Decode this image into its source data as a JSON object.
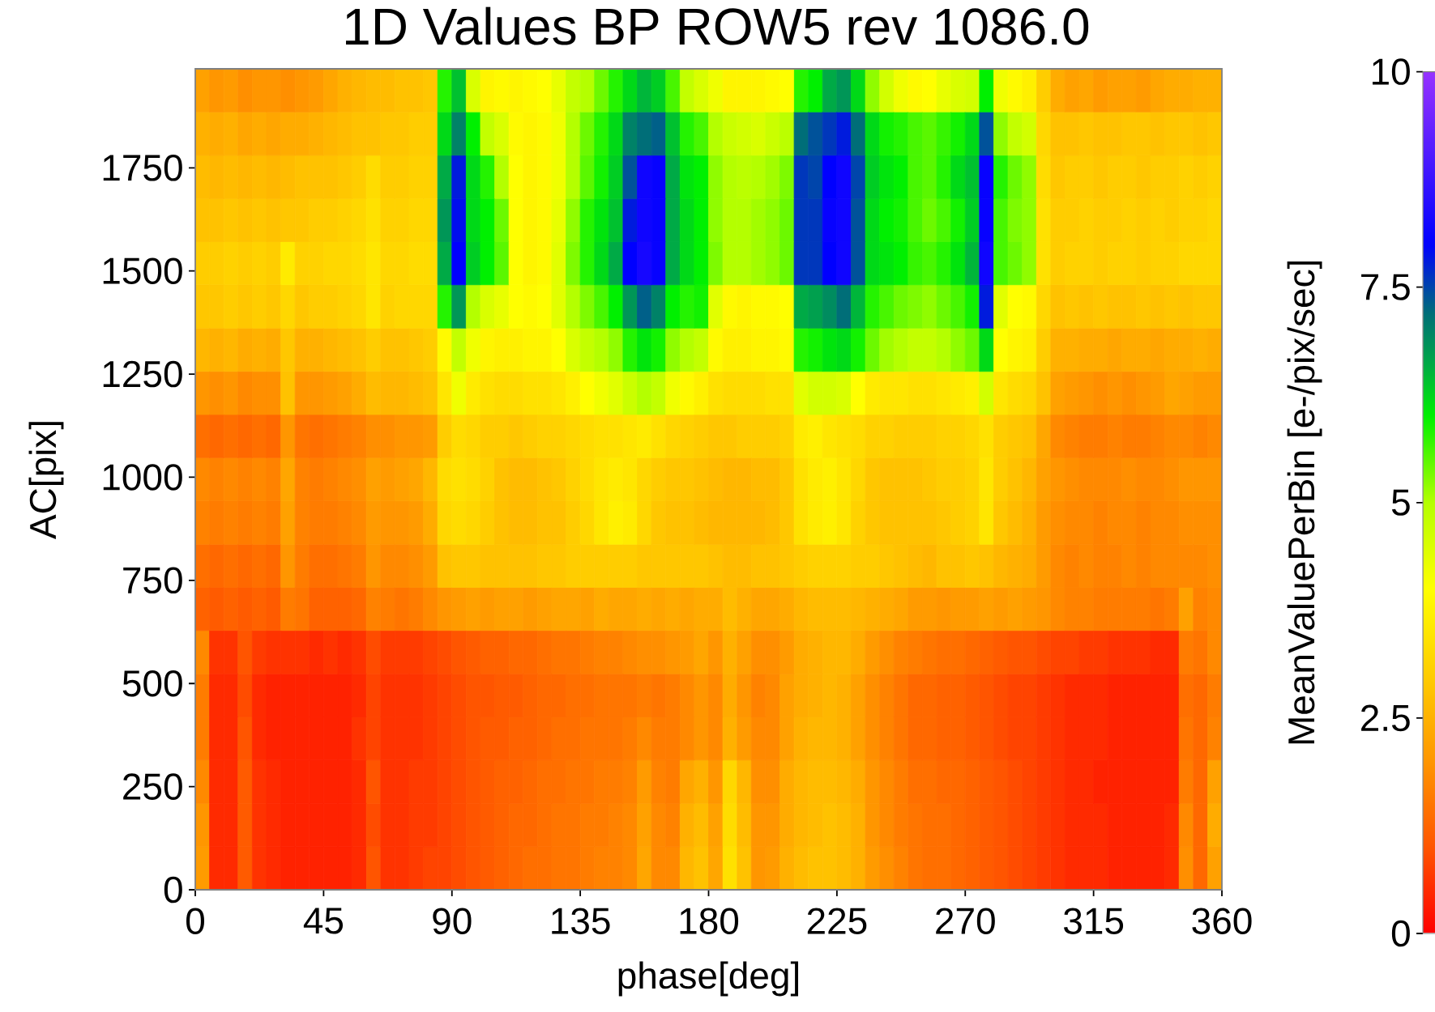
{
  "chart_data": {
    "type": "heatmap",
    "title": "1D Values BP ROW5 rev 1086.0",
    "xlabel": "phase[deg]",
    "ylabel": "AC[pix]",
    "clabel": "MeanValuePerBin [e-/pix/sec]",
    "xlim": [
      0,
      360
    ],
    "xticks": [
      0,
      45,
      90,
      135,
      180,
      225,
      270,
      315,
      360
    ],
    "ylim": [
      0,
      1990
    ],
    "yticks": [
      0,
      250,
      500,
      750,
      1000,
      1250,
      1500,
      1750
    ],
    "clim": [
      0,
      10
    ],
    "cticks": [
      0,
      2.5,
      5,
      7.5,
      10
    ],
    "x": [
      2.5,
      7.5,
      12.5,
      17.5,
      22.5,
      27.5,
      32.5,
      37.5,
      42.5,
      47.5,
      52.5,
      57.5,
      62.5,
      67.5,
      72.5,
      77.5,
      82.5,
      87.5,
      92.5,
      97.5,
      102.5,
      107.5,
      112.5,
      117.5,
      122.5,
      127.5,
      132.5,
      137.5,
      142.5,
      147.5,
      152.5,
      157.5,
      162.5,
      167.5,
      172.5,
      177.5,
      182.5,
      187.5,
      192.5,
      197.5,
      202.5,
      207.5,
      212.5,
      217.5,
      222.5,
      227.5,
      232.5,
      237.5,
      242.5,
      247.5,
      252.5,
      257.5,
      262.5,
      267.5,
      272.5,
      277.5,
      282.5,
      287.5,
      292.5,
      297.5,
      302.5,
      307.5,
      312.5,
      317.5,
      322.5,
      327.5,
      332.5,
      337.5,
      342.5,
      347.5,
      352.5,
      357.5
    ],
    "y": [
      1938,
      1833,
      1728,
      1623,
      1519,
      1414,
      1309,
      1204,
      1100,
      995,
      890,
      785,
      681,
      576,
      471,
      367,
      262,
      157,
      52
    ],
    "cells": [
      [
        2.2,
        2.0,
        2.1,
        1.9,
        2.0,
        2.0,
        1.9,
        2.0,
        2.1,
        2.3,
        2.5,
        2.6,
        2.7,
        2.7,
        2.8,
        2.8,
        2.9,
        5.8,
        6.4,
        4.5,
        3.8,
        3.9,
        3.8,
        3.9,
        4.0,
        4.3,
        4.8,
        5.0,
        5.4,
        5.8,
        6.2,
        6.5,
        6.3,
        5.6,
        4.8,
        4.5,
        4.2,
        3.8,
        3.8,
        3.8,
        3.9,
        4.0,
        5.8,
        6.0,
        6.6,
        6.8,
        6.2,
        5.2,
        4.6,
        4.2,
        3.9,
        4.0,
        4.3,
        4.5,
        4.6,
        6.0,
        4.2,
        3.9,
        3.7,
        3.0,
        2.4,
        2.2,
        2.3,
        2.1,
        2.2,
        2.2,
        2.1,
        2.3,
        2.4,
        2.4,
        2.5,
        2.5
      ],
      [
        2.5,
        2.4,
        2.5,
        2.3,
        2.4,
        2.3,
        2.4,
        2.4,
        2.5,
        2.6,
        2.7,
        2.8,
        2.8,
        2.9,
        2.9,
        3.0,
        3.0,
        6.2,
        7.0,
        6.0,
        4.8,
        4.5,
        3.9,
        3.8,
        3.9,
        4.2,
        5.0,
        5.4,
        5.8,
        6.2,
        7.0,
        7.2,
        7.3,
        6.4,
        5.8,
        5.6,
        5.0,
        4.7,
        4.6,
        4.5,
        4.7,
        4.9,
        7.2,
        7.4,
        7.6,
        7.8,
        7.2,
        6.2,
        5.9,
        5.8,
        5.6,
        5.5,
        5.7,
        5.9,
        6.2,
        7.4,
        5.2,
        4.8,
        4.6,
        3.2,
        2.8,
        2.8,
        2.9,
        2.8,
        2.8,
        2.9,
        2.9,
        2.8,
        2.9,
        2.9,
        2.8,
        2.9
      ],
      [
        2.7,
        2.6,
        2.7,
        2.6,
        2.7,
        2.6,
        2.7,
        2.8,
        2.8,
        2.8,
        2.9,
        3.0,
        3.3,
        3.0,
        3.0,
        3.1,
        3.1,
        6.6,
        7.8,
        6.2,
        5.8,
        5.0,
        4.0,
        3.8,
        3.9,
        4.2,
        5.0,
        5.5,
        5.9,
        6.3,
        7.4,
        8.2,
        8.1,
        6.6,
        6.1,
        6.0,
        5.2,
        5.0,
        4.9,
        5.0,
        5.1,
        5.3,
        7.6,
        7.5,
        8.0,
        8.2,
        7.5,
        6.3,
        6.1,
        6.0,
        5.6,
        5.5,
        5.8,
        6.2,
        6.4,
        8.1,
        5.8,
        5.4,
        5.2,
        3.3,
        2.9,
        3.0,
        3.0,
        2.9,
        3.0,
        3.0,
        2.9,
        3.0,
        3.0,
        3.1,
        3.0,
        3.1
      ],
      [
        2.8,
        2.8,
        2.9,
        2.8,
        2.9,
        2.8,
        2.9,
        2.9,
        3.0,
        3.0,
        3.1,
        3.2,
        3.4,
        3.1,
        3.1,
        3.2,
        3.2,
        6.8,
        7.9,
        6.2,
        6.0,
        5.4,
        4.0,
        3.8,
        3.9,
        4.3,
        5.2,
        5.8,
        6.1,
        6.4,
        7.8,
        8.2,
        8.1,
        6.6,
        6.2,
        6.0,
        5.2,
        5.0,
        5.0,
        5.1,
        5.2,
        5.4,
        7.6,
        7.6,
        8.1,
        8.2,
        7.4,
        6.2,
        6.0,
        5.9,
        5.6,
        5.4,
        5.6,
        5.9,
        6.3,
        8.1,
        5.6,
        5.3,
        5.2,
        3.4,
        3.0,
        3.0,
        3.1,
        3.0,
        3.0,
        3.1,
        3.0,
        3.1,
        3.0,
        3.1,
        3.1,
        3.2
      ],
      [
        3.0,
        3.0,
        3.1,
        3.0,
        3.1,
        3.0,
        3.6,
        3.1,
        3.1,
        3.2,
        3.2,
        3.3,
        3.5,
        3.2,
        3.2,
        3.3,
        3.3,
        6.6,
        8.0,
        6.3,
        6.0,
        5.5,
        4.0,
        3.8,
        3.9,
        4.4,
        5.3,
        5.8,
        6.2,
        6.6,
        8.0,
        8.3,
        8.1,
        6.6,
        6.2,
        6.0,
        5.3,
        5.0,
        5.0,
        5.1,
        5.2,
        5.4,
        7.6,
        7.6,
        8.0,
        8.2,
        7.4,
        6.2,
        6.1,
        6.0,
        5.7,
        5.6,
        5.8,
        6.1,
        6.5,
        8.2,
        5.6,
        5.4,
        5.2,
        3.4,
        3.0,
        3.1,
        3.1,
        3.0,
        3.1,
        3.1,
        3.0,
        3.1,
        3.1,
        3.2,
        3.2,
        3.2
      ],
      [
        2.9,
        2.9,
        3.0,
        2.9,
        3.0,
        2.9,
        3.2,
        2.9,
        3.0,
        3.0,
        3.1,
        3.2,
        3.5,
        3.1,
        3.2,
        3.2,
        3.2,
        5.8,
        6.8,
        5.0,
        4.5,
        4.3,
        4.0,
        3.9,
        4.0,
        4.4,
        5.0,
        5.3,
        5.6,
        6.0,
        6.8,
        7.3,
        7.0,
        6.0,
        5.8,
        5.9,
        4.4,
        3.9,
        3.8,
        3.9,
        3.9,
        4.0,
        6.6,
        6.7,
        6.9,
        7.2,
        6.5,
        5.8,
        5.6,
        5.4,
        5.3,
        5.2,
        5.4,
        5.6,
        5.9,
        7.8,
        4.4,
        4.0,
        3.9,
        3.2,
        2.8,
        2.9,
        2.8,
        2.9,
        2.8,
        2.8,
        2.9,
        2.8,
        2.9,
        2.8,
        2.9,
        2.9
      ],
      [
        2.6,
        2.5,
        2.6,
        2.4,
        2.5,
        2.4,
        2.9,
        2.5,
        2.5,
        2.6,
        2.7,
        2.8,
        3.0,
        2.8,
        2.8,
        2.9,
        3.0,
        3.9,
        4.8,
        4.2,
        3.8,
        3.7,
        3.7,
        3.8,
        3.8,
        4.0,
        4.5,
        4.8,
        5.0,
        5.2,
        5.8,
        6.1,
        5.9,
        5.2,
        5.0,
        4.8,
        3.9,
        3.7,
        3.7,
        3.8,
        3.8,
        3.9,
        5.8,
        5.9,
        6.1,
        6.2,
        5.9,
        5.4,
        5.1,
        5.0,
        4.8,
        4.8,
        5.0,
        5.2,
        5.4,
        6.2,
        4.0,
        3.8,
        3.7,
        3.0,
        2.5,
        2.5,
        2.4,
        2.4,
        2.3,
        2.4,
        2.4,
        2.3,
        2.4,
        2.4,
        2.5,
        2.4
      ],
      [
        2.0,
        1.9,
        2.0,
        1.8,
        1.9,
        1.9,
        2.8,
        2.0,
        2.0,
        2.1,
        2.2,
        2.4,
        2.7,
        2.6,
        2.6,
        2.7,
        2.8,
        3.5,
        4.2,
        3.6,
        3.4,
        3.3,
        3.3,
        3.4,
        3.4,
        3.5,
        3.7,
        4.0,
        4.2,
        4.4,
        4.7,
        5.0,
        4.8,
        4.2,
        3.9,
        3.7,
        3.4,
        3.3,
        3.3,
        3.3,
        3.4,
        3.4,
        4.4,
        4.6,
        4.6,
        4.5,
        4.0,
        3.6,
        3.5,
        3.5,
        3.4,
        3.4,
        3.5,
        3.6,
        3.7,
        4.6,
        3.5,
        3.3,
        3.2,
        2.8,
        2.2,
        2.1,
        2.0,
        1.9,
        2.0,
        1.9,
        2.0,
        2.1,
        2.3,
        2.2,
        2.1,
        2.1
      ],
      [
        1.4,
        1.3,
        1.4,
        1.3,
        1.4,
        1.3,
        2.0,
        1.5,
        1.4,
        1.5,
        1.6,
        1.7,
        1.9,
        1.9,
        2.0,
        2.0,
        2.1,
        3.0,
        3.3,
        3.2,
        3.0,
        3.0,
        2.9,
        3.0,
        3.1,
        3.1,
        3.2,
        3.3,
        3.4,
        3.4,
        3.5,
        3.6,
        3.4,
        3.2,
        3.1,
        3.0,
        2.9,
        2.9,
        3.0,
        3.0,
        3.0,
        3.1,
        3.6,
        3.7,
        3.5,
        3.4,
        3.3,
        3.1,
        3.1,
        3.0,
        3.0,
        3.0,
        3.1,
        3.1,
        3.2,
        3.4,
        3.0,
        2.9,
        2.8,
        2.3,
        1.8,
        1.7,
        1.6,
        1.6,
        1.7,
        1.6,
        1.6,
        1.7,
        1.8,
        1.8,
        1.7,
        1.8
      ],
      [
        1.8,
        1.7,
        1.8,
        1.7,
        1.8,
        1.7,
        2.3,
        1.7,
        1.6,
        1.7,
        1.8,
        1.9,
        2.2,
        2.1,
        2.2,
        2.3,
        2.6,
        3.3,
        3.4,
        3.3,
        3.1,
        2.8,
        2.7,
        2.7,
        2.8,
        2.9,
        3.1,
        3.3,
        3.5,
        3.6,
        3.5,
        3.2,
        3.0,
        2.9,
        2.9,
        2.8,
        2.7,
        2.6,
        2.6,
        2.7,
        2.7,
        2.9,
        3.4,
        3.6,
        3.7,
        3.5,
        3.2,
        2.9,
        2.8,
        2.8,
        2.8,
        2.9,
        3.0,
        3.0,
        3.1,
        3.5,
        3.0,
        2.8,
        2.6,
        2.2,
        2.0,
        1.9,
        1.8,
        1.8,
        1.8,
        1.9,
        1.8,
        1.8,
        1.9,
        2.0,
        2.0,
        2.0
      ],
      [
        1.7,
        1.6,
        1.7,
        1.6,
        1.7,
        1.6,
        2.2,
        1.7,
        1.6,
        1.6,
        1.7,
        1.8,
        2.1,
        2.0,
        2.0,
        2.1,
        2.4,
        3.2,
        3.3,
        3.2,
        3.0,
        2.8,
        2.7,
        2.7,
        2.8,
        2.8,
        3.0,
        3.2,
        3.5,
        3.7,
        3.6,
        3.2,
        2.9,
        2.8,
        2.8,
        2.7,
        2.6,
        2.6,
        2.6,
        2.6,
        2.7,
        2.9,
        3.4,
        3.6,
        3.7,
        3.5,
        3.1,
        2.9,
        2.8,
        2.8,
        2.8,
        2.8,
        2.9,
        3.0,
        3.1,
        3.5,
        2.9,
        2.7,
        2.5,
        2.1,
        1.9,
        1.8,
        1.8,
        1.7,
        1.8,
        1.8,
        1.7,
        1.8,
        1.8,
        1.9,
        1.9,
        1.9
      ],
      [
        1.4,
        1.3,
        1.4,
        1.3,
        1.4,
        1.3,
        2.0,
        1.6,
        1.4,
        1.4,
        1.5,
        1.6,
        2.0,
        1.8,
        1.8,
        1.9,
        2.1,
        2.8,
        2.9,
        2.9,
        2.8,
        2.8,
        2.8,
        2.8,
        2.9,
        2.9,
        3.0,
        3.0,
        3.0,
        3.0,
        3.0,
        2.9,
        2.9,
        2.9,
        2.9,
        2.9,
        2.8,
        2.7,
        2.7,
        2.8,
        2.8,
        2.9,
        3.0,
        3.1,
        3.1,
        3.1,
        3.0,
        3.0,
        2.9,
        2.8,
        2.7,
        2.6,
        2.8,
        2.8,
        2.9,
        2.8,
        2.6,
        2.5,
        2.4,
        2.1,
        1.8,
        1.7,
        1.8,
        1.7,
        1.7,
        1.8,
        1.7,
        1.8,
        1.8,
        1.8,
        1.8,
        1.9
      ],
      [
        1.2,
        1.1,
        1.2,
        1.1,
        1.2,
        1.1,
        1.6,
        1.5,
        1.2,
        1.2,
        1.2,
        1.3,
        1.7,
        1.6,
        1.5,
        1.6,
        1.8,
        2.0,
        2.1,
        2.2,
        2.1,
        2.2,
        2.2,
        2.1,
        2.2,
        2.3,
        2.3,
        2.2,
        2.4,
        2.3,
        2.3,
        2.4,
        2.3,
        2.4,
        2.3,
        2.4,
        2.4,
        2.7,
        2.5,
        2.3,
        2.3,
        2.4,
        2.6,
        2.7,
        2.7,
        2.7,
        2.6,
        2.5,
        2.4,
        2.3,
        2.1,
        2.1,
        2.0,
        2.1,
        2.1,
        2.2,
        2.1,
        2.2,
        2.1,
        2.0,
        1.8,
        1.7,
        1.7,
        1.6,
        1.6,
        1.6,
        1.6,
        1.5,
        1.6,
        2.2,
        1.7,
        1.8
      ],
      [
        1.8,
        0.6,
        0.6,
        1.0,
        0.7,
        0.6,
        0.6,
        0.6,
        0.5,
        0.6,
        0.5,
        0.6,
        0.9,
        0.7,
        0.7,
        0.7,
        0.8,
        0.9,
        1.0,
        1.1,
        1.2,
        1.2,
        1.3,
        1.3,
        1.4,
        1.5,
        1.5,
        1.6,
        1.7,
        1.7,
        1.8,
        1.9,
        1.9,
        2.0,
        2.1,
        2.3,
        2.0,
        2.5,
        2.2,
        1.9,
        1.9,
        2.1,
        2.4,
        2.5,
        2.6,
        2.6,
        2.4,
        2.1,
        1.9,
        1.7,
        1.6,
        1.5,
        1.4,
        1.4,
        1.3,
        1.2,
        1.1,
        1.0,
        1.0,
        0.9,
        0.8,
        0.8,
        0.7,
        0.7,
        0.6,
        0.6,
        0.6,
        0.5,
        0.5,
        1.6,
        1.5,
        1.8
      ],
      [
        1.6,
        0.5,
        0.5,
        0.9,
        0.5,
        0.4,
        0.4,
        0.4,
        0.4,
        0.4,
        0.4,
        0.5,
        0.8,
        0.6,
        0.6,
        0.6,
        0.7,
        0.8,
        0.9,
        1.0,
        1.0,
        1.1,
        1.1,
        1.2,
        1.3,
        1.3,
        1.4,
        1.4,
        1.5,
        1.5,
        1.5,
        1.6,
        1.5,
        1.6,
        1.8,
        2.0,
        1.8,
        2.4,
        2.0,
        1.7,
        1.8,
        2.2,
        2.4,
        2.5,
        2.6,
        2.5,
        2.2,
        1.9,
        1.7,
        1.5,
        1.3,
        1.3,
        1.2,
        1.2,
        1.1,
        1.0,
        0.9,
        0.8,
        0.8,
        0.7,
        0.6,
        0.5,
        0.5,
        0.5,
        0.4,
        0.4,
        0.4,
        0.4,
        0.4,
        1.4,
        1.3,
        1.6
      ],
      [
        1.6,
        0.5,
        0.5,
        1.0,
        0.5,
        0.4,
        0.4,
        0.4,
        0.4,
        0.4,
        0.4,
        0.6,
        0.8,
        0.6,
        0.6,
        0.6,
        0.7,
        0.8,
        0.9,
        1.0,
        1.1,
        1.1,
        1.2,
        1.2,
        1.3,
        1.4,
        1.4,
        1.5,
        1.5,
        1.5,
        1.6,
        1.8,
        1.6,
        1.6,
        1.8,
        2.0,
        1.8,
        2.5,
        2.1,
        1.8,
        1.8,
        2.2,
        2.5,
        2.6,
        2.6,
        2.5,
        2.2,
        1.9,
        1.7,
        1.5,
        1.3,
        1.3,
        1.2,
        1.2,
        1.1,
        1.0,
        0.9,
        0.8,
        0.8,
        0.7,
        0.6,
        0.5,
        0.5,
        0.5,
        0.4,
        0.4,
        0.4,
        0.4,
        0.4,
        1.5,
        1.3,
        1.7
      ],
      [
        1.8,
        0.5,
        0.5,
        1.1,
        0.6,
        0.5,
        0.4,
        0.4,
        0.4,
        0.4,
        0.4,
        0.5,
        1.0,
        0.6,
        0.6,
        0.7,
        0.7,
        0.8,
        0.9,
        1.0,
        1.1,
        1.2,
        1.2,
        1.3,
        1.4,
        1.4,
        1.5,
        1.5,
        1.6,
        1.6,
        1.7,
        2.1,
        1.7,
        1.6,
        2.3,
        2.5,
        2.0,
        3.2,
        2.6,
        1.9,
        1.9,
        2.4,
        2.6,
        2.7,
        2.7,
        2.6,
        2.4,
        2.0,
        1.8,
        1.6,
        1.4,
        1.4,
        1.3,
        1.3,
        1.2,
        1.1,
        1.0,
        0.9,
        0.8,
        0.7,
        0.6,
        0.5,
        0.5,
        0.4,
        0.4,
        0.4,
        0.4,
        0.4,
        0.4,
        1.6,
        1.3,
        2.2
      ],
      [
        2.0,
        0.5,
        0.5,
        1.1,
        0.6,
        0.5,
        0.4,
        0.4,
        0.4,
        0.4,
        0.4,
        0.5,
        0.9,
        0.6,
        0.6,
        0.7,
        0.7,
        0.8,
        0.9,
        1.0,
        1.1,
        1.2,
        1.3,
        1.3,
        1.4,
        1.5,
        1.5,
        1.6,
        1.6,
        1.7,
        1.8,
        2.2,
        1.8,
        1.7,
        2.5,
        2.7,
        2.2,
        3.3,
        2.7,
        2.0,
        2.0,
        2.4,
        2.6,
        2.7,
        2.8,
        2.7,
        2.5,
        2.0,
        1.8,
        1.6,
        1.5,
        1.4,
        1.4,
        1.3,
        1.2,
        1.1,
        1.0,
        0.9,
        0.8,
        0.7,
        0.6,
        0.5,
        0.5,
        0.5,
        0.4,
        0.4,
        0.4,
        0.4,
        0.5,
        1.8,
        1.3,
        2.4
      ],
      [
        2.1,
        0.5,
        0.5,
        1.1,
        0.6,
        0.5,
        0.4,
        0.4,
        0.4,
        0.4,
        0.4,
        0.5,
        1.0,
        0.6,
        0.6,
        0.7,
        0.8,
        0.8,
        0.9,
        1.0,
        1.1,
        1.2,
        1.3,
        1.4,
        1.4,
        1.5,
        1.5,
        1.6,
        1.7,
        1.7,
        1.8,
        2.3,
        1.8,
        1.8,
        2.6,
        2.8,
        2.3,
        3.4,
        2.8,
        2.0,
        2.1,
        2.5,
        2.7,
        2.8,
        2.8,
        2.7,
        2.5,
        2.1,
        1.9,
        1.7,
        1.5,
        1.4,
        1.4,
        1.3,
        1.2,
        1.1,
        1.0,
        0.9,
        0.8,
        0.7,
        0.6,
        0.5,
        0.5,
        0.5,
        0.4,
        0.4,
        0.4,
        0.4,
        0.5,
        1.9,
        1.3,
        2.2
      ]
    ]
  }
}
